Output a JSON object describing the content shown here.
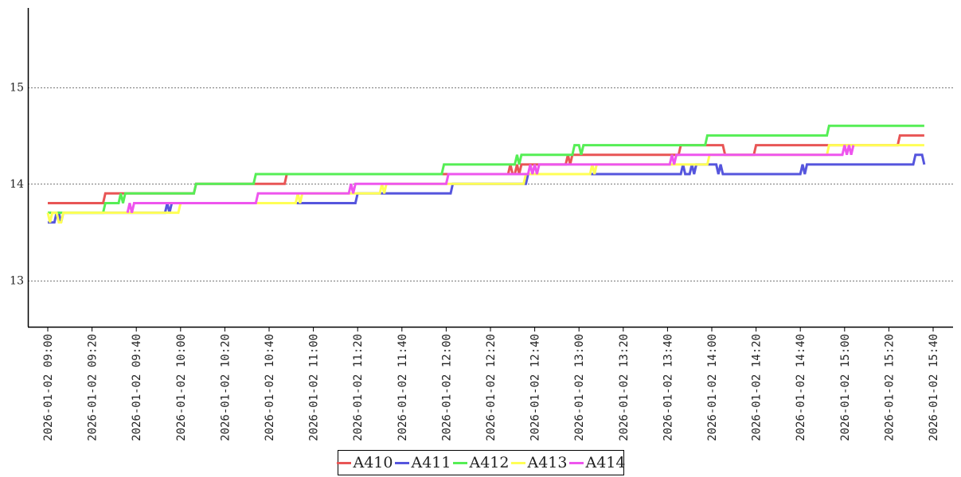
{
  "chart_data": {
    "type": "line",
    "title": "",
    "xlabel": "",
    "ylabel": "",
    "x_range": [
      "2026-01-02 09:00",
      "2026-01-02 15:40"
    ],
    "ylim": [
      12.52,
      15.82
    ],
    "yticks": [
      13,
      14,
      15
    ],
    "ytick_labels": [
      "13",
      "14",
      "15"
    ],
    "xtick_labels": [
      "2026-01-02 09:00",
      "2026-01-02 09:20",
      "2026-01-02 09:40",
      "2026-01-02 10:00",
      "2026-01-02 10:20",
      "2026-01-02 10:40",
      "2026-01-02 11:00",
      "2026-01-02 11:20",
      "2026-01-02 11:40",
      "2026-01-02 12:00",
      "2026-01-02 12:20",
      "2026-01-02 12:40",
      "2026-01-02 13:00",
      "2026-01-02 13:20",
      "2026-01-02 13:40",
      "2026-01-02 14:00",
      "2026-01-02 14:20",
      "2026-01-02 14:40",
      "2026-01-02 15:00",
      "2026-01-02 15:20",
      "2026-01-02 15:40"
    ],
    "grid": "horizontal dotted",
    "legend_position": "bottom-center",
    "series": [
      {
        "name": "A410",
        "color": "#e85555",
        "points": [
          [
            "2026-01-02 09:00",
            13.8
          ],
          [
            "2026-01-02 09:25",
            13.8
          ],
          [
            "2026-01-02 09:26",
            13.9
          ],
          [
            "2026-01-02 10:06",
            13.9
          ],
          [
            "2026-01-02 10:07",
            14.0
          ],
          [
            "2026-01-02 10:47",
            14.0
          ],
          [
            "2026-01-02 10:48",
            14.1
          ],
          [
            "2026-01-02 12:28",
            14.1
          ],
          [
            "2026-01-02 12:29",
            14.2
          ],
          [
            "2026-01-02 12:30",
            14.1
          ],
          [
            "2026-01-02 12:31",
            14.1
          ],
          [
            "2026-01-02 12:32",
            14.2
          ],
          [
            "2026-01-02 12:33",
            14.1
          ],
          [
            "2026-01-02 12:34",
            14.2
          ],
          [
            "2026-01-02 12:54",
            14.2
          ],
          [
            "2026-01-02 12:55",
            14.3
          ],
          [
            "2026-01-02 12:56",
            14.2
          ],
          [
            "2026-01-02 12:57",
            14.3
          ],
          [
            "2026-01-02 13:45",
            14.3
          ],
          [
            "2026-01-02 13:46",
            14.4
          ],
          [
            "2026-01-02 14:05",
            14.4
          ],
          [
            "2026-01-02 14:06",
            14.3
          ],
          [
            "2026-01-02 14:19",
            14.3
          ],
          [
            "2026-01-02 14:20",
            14.4
          ],
          [
            "2026-01-02 15:24",
            14.4
          ],
          [
            "2026-01-02 15:25",
            14.5
          ],
          [
            "2026-01-02 15:36",
            14.5
          ]
        ]
      },
      {
        "name": "A411",
        "color": "#5555dd",
        "points": [
          [
            "2026-01-02 09:00",
            13.6
          ],
          [
            "2026-01-02 09:03",
            13.6
          ],
          [
            "2026-01-02 09:04",
            13.7
          ],
          [
            "2026-01-02 09:05",
            13.7
          ],
          [
            "2026-01-02 09:06",
            13.6
          ],
          [
            "2026-01-02 09:07",
            13.7
          ],
          [
            "2026-01-02 09:53",
            13.7
          ],
          [
            "2026-01-02 09:54",
            13.8
          ],
          [
            "2026-01-02 09:55",
            13.7
          ],
          [
            "2026-01-02 09:56",
            13.8
          ],
          [
            "2026-01-02 11:19",
            13.8
          ],
          [
            "2026-01-02 11:20",
            13.9
          ],
          [
            "2026-01-02 12:02",
            13.9
          ],
          [
            "2026-01-02 12:03",
            14.0
          ],
          [
            "2026-01-02 12:36",
            14.0
          ],
          [
            "2026-01-02 12:37",
            14.1
          ],
          [
            "2026-01-02 13:46",
            14.1
          ],
          [
            "2026-01-02 13:47",
            14.2
          ],
          [
            "2026-01-02 13:48",
            14.1
          ],
          [
            "2026-01-02 13:50",
            14.1
          ],
          [
            "2026-01-02 13:51",
            14.2
          ],
          [
            "2026-01-02 13:52",
            14.1
          ],
          [
            "2026-01-02 13:53",
            14.2
          ],
          [
            "2026-01-02 14:02",
            14.2
          ],
          [
            "2026-01-02 14:03",
            14.1
          ],
          [
            "2026-01-02 14:04",
            14.2
          ],
          [
            "2026-01-02 14:05",
            14.1
          ],
          [
            "2026-01-02 14:40",
            14.1
          ],
          [
            "2026-01-02 14:41",
            14.2
          ],
          [
            "2026-01-02 14:42",
            14.1
          ],
          [
            "2026-01-02 14:43",
            14.2
          ],
          [
            "2026-01-02 15:31",
            14.2
          ],
          [
            "2026-01-02 15:32",
            14.3
          ],
          [
            "2026-01-02 15:35",
            14.3
          ],
          [
            "2026-01-02 15:36",
            14.2
          ]
        ]
      },
      {
        "name": "A412",
        "color": "#55ee55",
        "points": [
          [
            "2026-01-02 09:00",
            13.7
          ],
          [
            "2026-01-02 09:25",
            13.7
          ],
          [
            "2026-01-02 09:26",
            13.8
          ],
          [
            "2026-01-02 09:32",
            13.8
          ],
          [
            "2026-01-02 09:33",
            13.9
          ],
          [
            "2026-01-02 09:34",
            13.8
          ],
          [
            "2026-01-02 09:35",
            13.9
          ],
          [
            "2026-01-02 10:06",
            13.9
          ],
          [
            "2026-01-02 10:07",
            14.0
          ],
          [
            "2026-01-02 10:33",
            14.0
          ],
          [
            "2026-01-02 10:34",
            14.1
          ],
          [
            "2026-01-02 10:47",
            14.1
          ],
          [
            "2026-01-02 11:58",
            14.1
          ],
          [
            "2026-01-02 11:59",
            14.2
          ],
          [
            "2026-01-02 12:31",
            14.2
          ],
          [
            "2026-01-02 12:32",
            14.3
          ],
          [
            "2026-01-02 12:33",
            14.2
          ],
          [
            "2026-01-02 12:34",
            14.3
          ],
          [
            "2026-01-02 12:57",
            14.3
          ],
          [
            "2026-01-02 12:58",
            14.4
          ],
          [
            "2026-01-02 13:00",
            14.4
          ],
          [
            "2026-01-02 13:01",
            14.3
          ],
          [
            "2026-01-02 13:02",
            14.4
          ],
          [
            "2026-01-02 13:57",
            14.4
          ],
          [
            "2026-01-02 13:58",
            14.5
          ],
          [
            "2026-01-02 14:52",
            14.5
          ],
          [
            "2026-01-02 14:53",
            14.6
          ],
          [
            "2026-01-02 15:36",
            14.6
          ]
        ]
      },
      {
        "name": "A413",
        "color": "#ffff55",
        "points": [
          [
            "2026-01-02 09:00",
            13.7
          ],
          [
            "2026-01-02 09:01",
            13.6
          ],
          [
            "2026-01-02 09:02",
            13.7
          ],
          [
            "2026-01-02 09:04",
            13.7
          ],
          [
            "2026-01-02 09:05",
            13.6
          ],
          [
            "2026-01-02 09:06",
            13.6
          ],
          [
            "2026-01-02 09:07",
            13.7
          ],
          [
            "2026-01-02 09:55",
            13.7
          ],
          [
            "2026-01-02 09:56",
            13.7
          ],
          [
            "2026-01-02 09:59",
            13.7
          ],
          [
            "2026-01-02 10:00",
            13.8
          ],
          [
            "2026-01-02 10:52",
            13.8
          ],
          [
            "2026-01-02 10:53",
            13.9
          ],
          [
            "2026-01-02 10:54",
            13.8
          ],
          [
            "2026-01-02 10:55",
            13.9
          ],
          [
            "2026-01-02 11:30",
            13.9
          ],
          [
            "2026-01-02 11:31",
            14.0
          ],
          [
            "2026-01-02 11:32",
            13.9
          ],
          [
            "2026-01-02 11:33",
            14.0
          ],
          [
            "2026-01-02 12:35",
            14.0
          ],
          [
            "2026-01-02 12:36",
            14.1
          ],
          [
            "2026-01-02 13:05",
            14.1
          ],
          [
            "2026-01-02 13:06",
            14.2
          ],
          [
            "2026-01-02 13:07",
            14.1
          ],
          [
            "2026-01-02 13:08",
            14.2
          ],
          [
            "2026-01-02 13:58",
            14.2
          ],
          [
            "2026-01-02 13:59",
            14.3
          ],
          [
            "2026-01-02 14:52",
            14.3
          ],
          [
            "2026-01-02 14:53",
            14.4
          ],
          [
            "2026-01-02 15:36",
            14.4
          ]
        ]
      },
      {
        "name": "A414",
        "color": "#ee55ee",
        "points": [
          [
            "2026-01-02 09:36",
            13.7
          ],
          [
            "2026-01-02 09:37",
            13.8
          ],
          [
            "2026-01-02 09:38",
            13.7
          ],
          [
            "2026-01-02 09:39",
            13.8
          ],
          [
            "2026-01-02 10:34",
            13.8
          ],
          [
            "2026-01-02 10:35",
            13.9
          ],
          [
            "2026-01-02 11:16",
            13.9
          ],
          [
            "2026-01-02 11:17",
            14.0
          ],
          [
            "2026-01-02 11:18",
            13.9
          ],
          [
            "2026-01-02 11:19",
            14.0
          ],
          [
            "2026-01-02 12:00",
            14.0
          ],
          [
            "2026-01-02 12:01",
            14.1
          ],
          [
            "2026-01-02 12:37",
            14.1
          ],
          [
            "2026-01-02 12:38",
            14.2
          ],
          [
            "2026-01-02 12:39",
            14.1
          ],
          [
            "2026-01-02 12:40",
            14.2
          ],
          [
            "2026-01-02 12:41",
            14.1
          ],
          [
            "2026-01-02 12:42",
            14.2
          ],
          [
            "2026-01-02 13:41",
            14.2
          ],
          [
            "2026-01-02 13:42",
            14.3
          ],
          [
            "2026-01-02 13:43",
            14.2
          ],
          [
            "2026-01-02 13:44",
            14.3
          ],
          [
            "2026-01-02 13:58",
            14.3
          ],
          [
            "2026-01-02 14:59",
            14.3
          ],
          [
            "2026-01-02 15:00",
            14.4
          ],
          [
            "2026-01-02 15:01",
            14.3
          ],
          [
            "2026-01-02 15:02",
            14.4
          ],
          [
            "2026-01-02 15:03",
            14.3
          ],
          [
            "2026-01-02 15:04",
            14.4
          ]
        ]
      }
    ]
  }
}
